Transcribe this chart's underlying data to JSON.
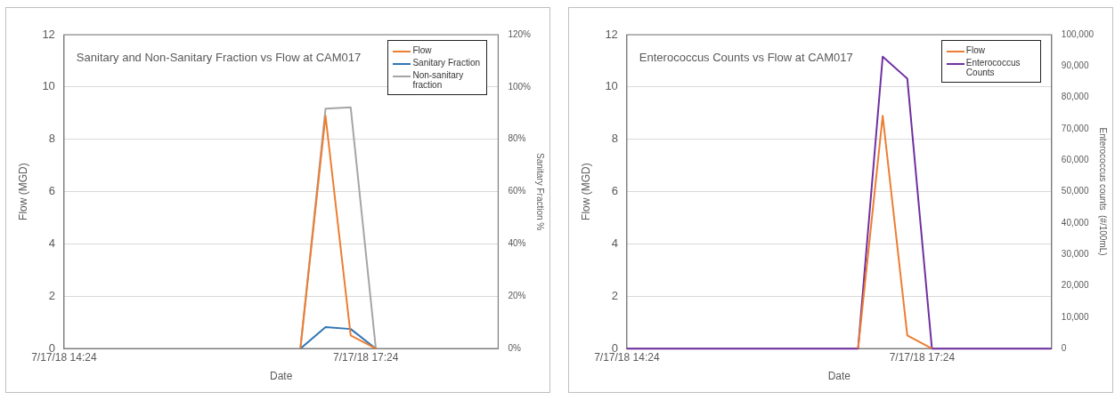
{
  "chart_data": [
    {
      "type": "line",
      "title": "Sanitary and Non-Sanitary Fraction vs Flow at CAM017",
      "xlabel": "Date",
      "ylabel": "Flow (MGD)",
      "y2label": "Sanitary Fraction %",
      "x": [
        "--07-17T16:45",
        "--07-17T17:00",
        "--07-17T17:15",
        "--07-17T17:30"
      ],
      "series": [
        {
          "name": "Flow",
          "color": "#ed7d31",
          "values": [
            0,
            8.9,
            0.5,
            0
          ]
        },
        {
          "name": "Sanitary Fraction",
          "color": "#2e75b6",
          "axis": "y2",
          "values": [
            0,
            8.2,
            7.5,
            0
          ]
        },
        {
          "name": "Non-sanitary fraction",
          "color": "#a5a5a5",
          "axis": "y2",
          "values": [
            0,
            91.7,
            92.2,
            0
          ]
        }
      ],
      "xlim": [
        "--07-17T14:24",
        "--07-17T18:43"
      ],
      "xticks": [
        {
          "value": "--07-17T14:24",
          "label": "7/17/18 14:24"
        },
        {
          "value": "--07-17T17:24",
          "label": "7/17/18 17:24"
        }
      ],
      "ylim": [
        0,
        12
      ],
      "yticks": [
        0,
        2,
        4,
        6,
        8,
        10,
        12
      ],
      "y2lim": [
        0,
        120
      ],
      "y2ticks": [
        {
          "value": 0,
          "label": "0%"
        },
        {
          "value": 20,
          "label": "20%"
        },
        {
          "value": 40,
          "label": "40%"
        },
        {
          "value": 60,
          "label": "60%"
        },
        {
          "value": 80,
          "label": "80%"
        },
        {
          "value": 100,
          "label": "100%"
        },
        {
          "value": 120,
          "label": "120%"
        }
      ],
      "grid": "y",
      "legend": "top right",
      "marker": "none"
    },
    {
      "type": "line",
      "title": "Enterococcus Counts vs Flow at CAM017",
      "xlabel": "Date",
      "ylabel": "Flow (MGD)",
      "y2label": "Enterococcus counts  (#/100mL)",
      "x": [
        "--07-17T14:24",
        "--07-17T16:45",
        "--07-17T17:00",
        "--07-17T17:15",
        "--07-17T17:30",
        "--07-17T18:43"
      ],
      "series": [
        {
          "name": "Flow",
          "color": "#ed7d31",
          "values": [
            null,
            0,
            8.9,
            0.5,
            0,
            null
          ]
        },
        {
          "name": "Enterococcus Counts",
          "color": "#7030a0",
          "axis": "y2",
          "values": [
            0,
            0,
            93000,
            86000,
            0,
            0
          ]
        }
      ],
      "xlim": [
        "--07-17T14:24",
        "--07-17T18:43"
      ],
      "xticks": [
        {
          "value": "--07-17T14:24",
          "label": "7/17/18 14:24"
        },
        {
          "value": "--07-17T17:24",
          "label": "7/17/18 17:24"
        }
      ],
      "ylim": [
        0,
        12
      ],
      "yticks": [
        0,
        2,
        4,
        6,
        8,
        10,
        12
      ],
      "y2lim": [
        0,
        100000
      ],
      "y2ticks": [
        {
          "value": 0,
          "label": "0"
        },
        {
          "value": 10000,
          "label": "10,000"
        },
        {
          "value": 20000,
          "label": "20,000"
        },
        {
          "value": 30000,
          "label": "30,000"
        },
        {
          "value": 40000,
          "label": "40,000"
        },
        {
          "value": 50000,
          "label": "50,000"
        },
        {
          "value": 60000,
          "label": "60,000"
        },
        {
          "value": 70000,
          "label": "70,000"
        },
        {
          "value": 80000,
          "label": "80,000"
        },
        {
          "value": 90000,
          "label": "90,000"
        },
        {
          "value": 100000,
          "label": "100,000"
        }
      ],
      "grid": "y",
      "legend": "top right",
      "marker": "none"
    }
  ]
}
